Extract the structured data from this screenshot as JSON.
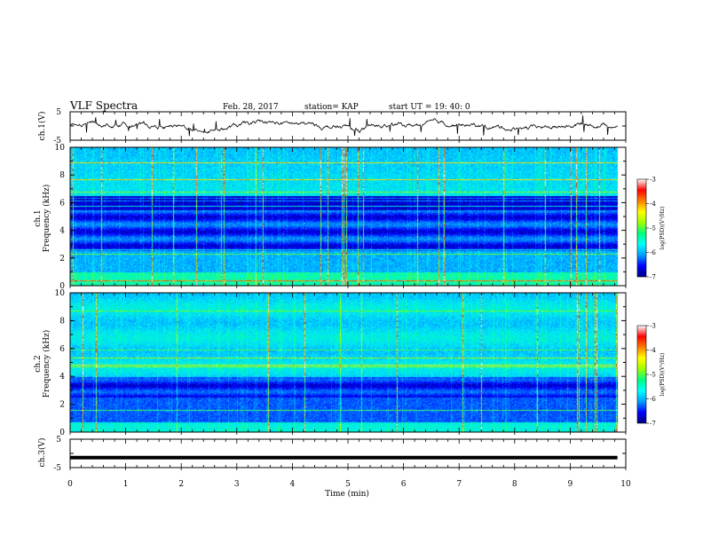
{
  "header": {
    "title": "VLF Spectra",
    "date": "Feb. 28, 2017",
    "station": "station= KAP",
    "start": "start  UT =   19: 40: 0"
  },
  "chart_data": [
    {
      "name": "ch1-voltage",
      "type": "line",
      "ylabel": "ch.1(V)",
      "ylim": [
        -5,
        5
      ],
      "y_ticks": [
        "5",
        "-5"
      ],
      "xlim": [
        0,
        10
      ],
      "x_data_max": 9.85,
      "series": [
        {
          "values_note": "noisy trace fluctuating near 0 V"
        }
      ]
    },
    {
      "name": "ch1-spectrogram",
      "type": "heatmap",
      "ylabel_line1": "ch.1",
      "ylabel_line2": "Frequency (kHz)",
      "ylim": [
        0,
        10
      ],
      "y_ticks": [
        "0",
        "2",
        "4",
        "6",
        "8",
        "10"
      ],
      "xlim": [
        0,
        10
      ],
      "colorbar": {
        "label": "log(PSD)(V²/Hz)",
        "range": [
          -7,
          -3
        ],
        "ticks": [
          "-3",
          "-4",
          "-5",
          "-6",
          "-7"
        ],
        "colors": [
          "#000080",
          "#0000ff",
          "#00a0ff",
          "#00ffff",
          "#00ff80",
          "#a0ff00",
          "#ffff00",
          "#ff8000",
          "#ff0000",
          "#ffffff"
        ]
      }
    },
    {
      "name": "ch2-spectrogram",
      "type": "heatmap",
      "ylabel_line1": "ch.2",
      "ylabel_line2": "Frequency (kHz)",
      "ylim": [
        0,
        10
      ],
      "y_ticks": [
        "0",
        "2",
        "4",
        "6",
        "8",
        "10"
      ],
      "xlim": [
        0,
        10
      ],
      "colorbar": {
        "label": "log(PSD)(V²/Hz)",
        "range": [
          -7,
          -3
        ],
        "ticks": [
          "-3",
          "-4",
          "-5",
          "-6",
          "-7"
        ],
        "colors": [
          "#000080",
          "#0000ff",
          "#00a0ff",
          "#00ffff",
          "#00ff80",
          "#a0ff00",
          "#ffff00",
          "#ff8000",
          "#ff0000",
          "#ffffff"
        ]
      }
    },
    {
      "name": "ch3-voltage",
      "type": "line",
      "ylabel": "ch.3(V)",
      "ylim": [
        -5,
        5
      ],
      "y_ticks": [
        "5",
        "-5"
      ],
      "xlim": [
        0,
        10
      ],
      "x_data_max": 9.85,
      "series": [
        {
          "values": [
            [
              0,
              -1.5
            ],
            [
              9.85,
              -1.5
            ]
          ]
        }
      ]
    }
  ],
  "xaxis": {
    "label": "Time  (min)",
    "ticks": [
      "0",
      "1",
      "2",
      "3",
      "4",
      "5",
      "6",
      "7",
      "8",
      "9",
      "10"
    ]
  }
}
